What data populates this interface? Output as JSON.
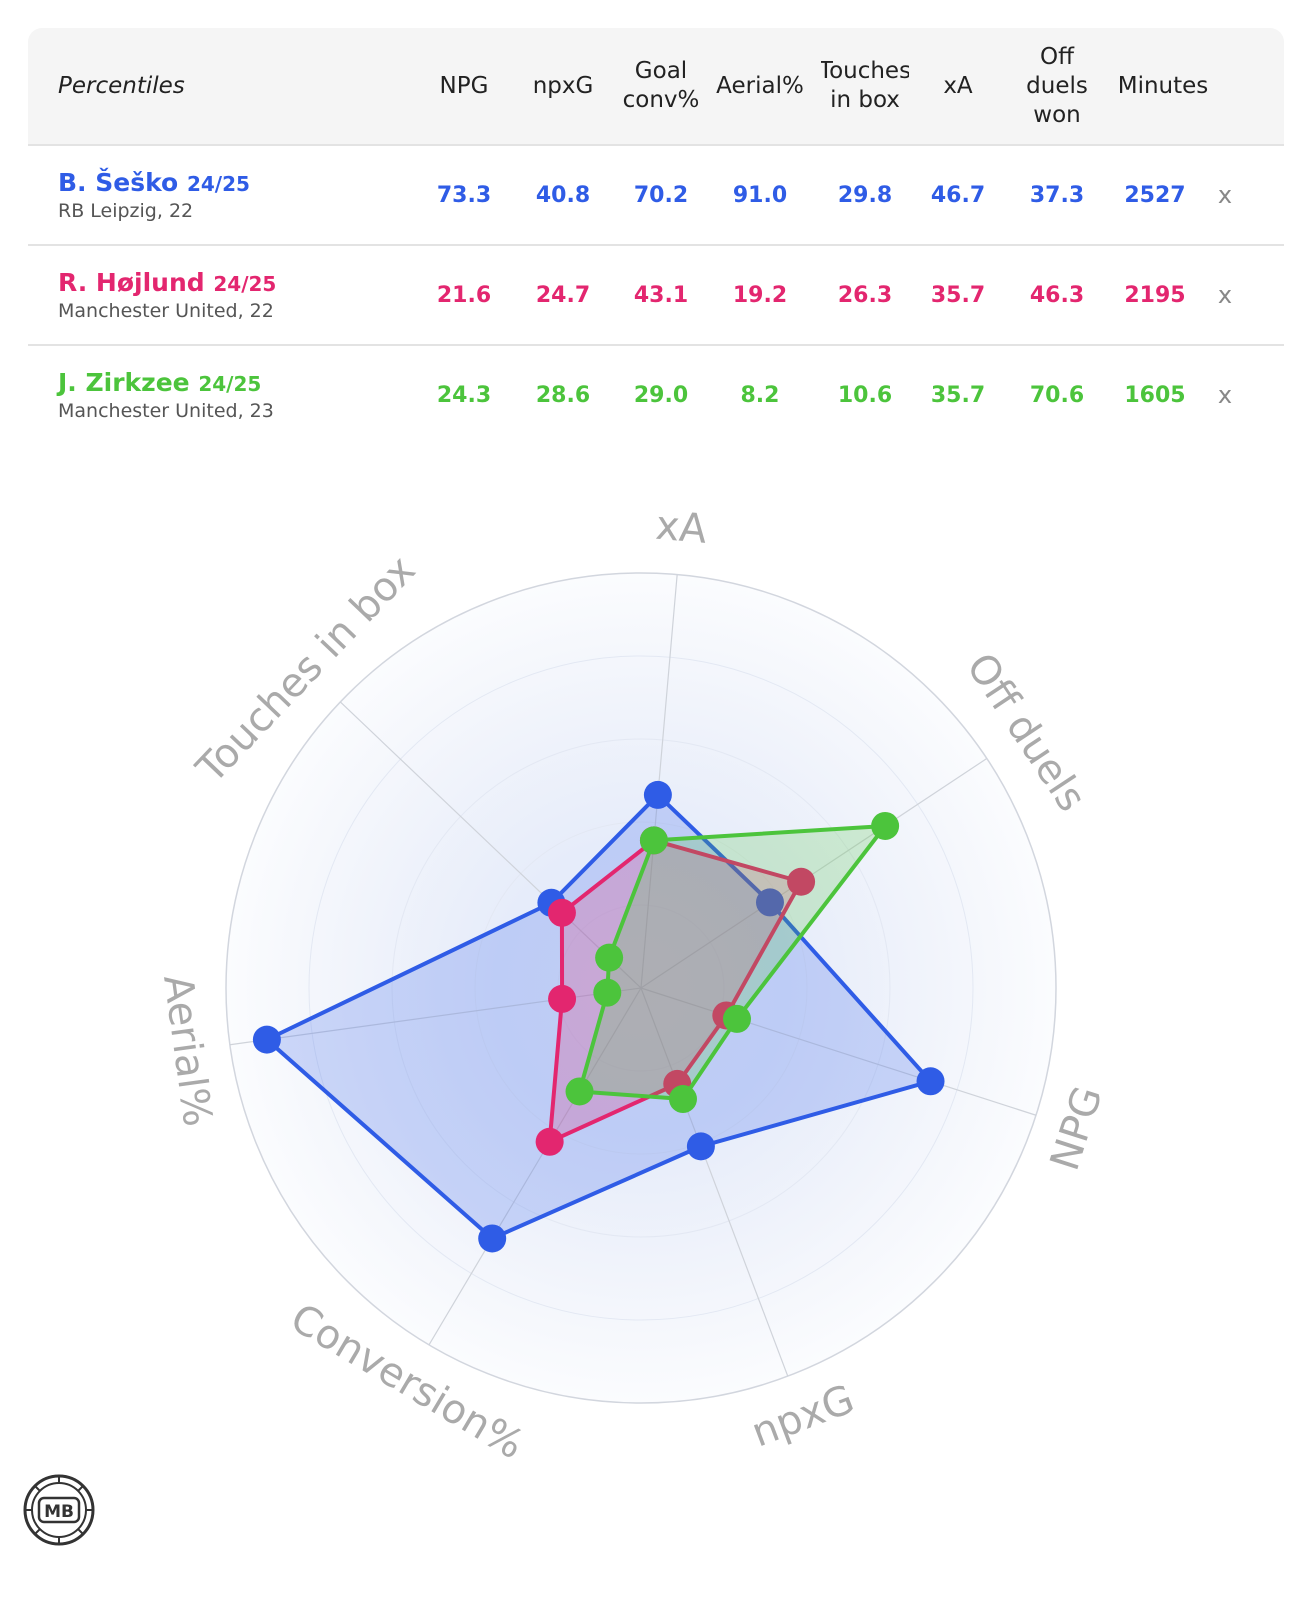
{
  "table": {
    "header_label": "Percentiles",
    "columns": [
      "NPG",
      "npxG",
      "Goal conv%",
      "Aerial%",
      "Touches in box",
      "xA",
      "Off duels won",
      "Minutes"
    ],
    "remove_label": "x",
    "players": [
      {
        "name": "B. Šeško",
        "season": "24/25",
        "club": "RB Leipzig, 22",
        "color": "#2f5ce6",
        "values": [
          "73.3",
          "40.8",
          "70.2",
          "91.0",
          "29.8",
          "46.7",
          "37.3",
          "2527"
        ]
      },
      {
        "name": "R. Højlund",
        "season": "24/25",
        "club": "Manchester United, 22",
        "color": "#e3266f",
        "values": [
          "21.6",
          "24.7",
          "43.1",
          "19.2",
          "26.3",
          "35.7",
          "46.3",
          "2195"
        ]
      },
      {
        "name": "J. Zirkzee",
        "season": "24/25",
        "club": "Manchester United, 23",
        "color": "#4cc43c",
        "values": [
          "24.3",
          "28.6",
          "29.0",
          "8.2",
          "10.6",
          "35.7",
          "70.6",
          "1605"
        ]
      }
    ]
  },
  "chart_data": {
    "type": "radar",
    "axes": [
      "xA",
      "Off duels",
      "NPG",
      "npxG",
      "Conversion%",
      "Aerial%",
      "Touches in box"
    ],
    "range": [
      0,
      100
    ],
    "series": [
      {
        "name": "B. Šeško",
        "color": "#2f5ce6",
        "values": [
          46.7,
          37.3,
          73.3,
          40.8,
          70.2,
          91.0,
          29.8
        ]
      },
      {
        "name": "R. Højlund",
        "color": "#e3266f",
        "values": [
          35.7,
          46.3,
          21.6,
          24.7,
          43.1,
          19.2,
          26.3
        ]
      },
      {
        "name": "J. Zirkzee",
        "color": "#4cc43c",
        "values": [
          35.7,
          70.6,
          24.3,
          28.6,
          29.0,
          8.2,
          10.6
        ]
      }
    ]
  },
  "logo": {
    "text": "MB"
  }
}
